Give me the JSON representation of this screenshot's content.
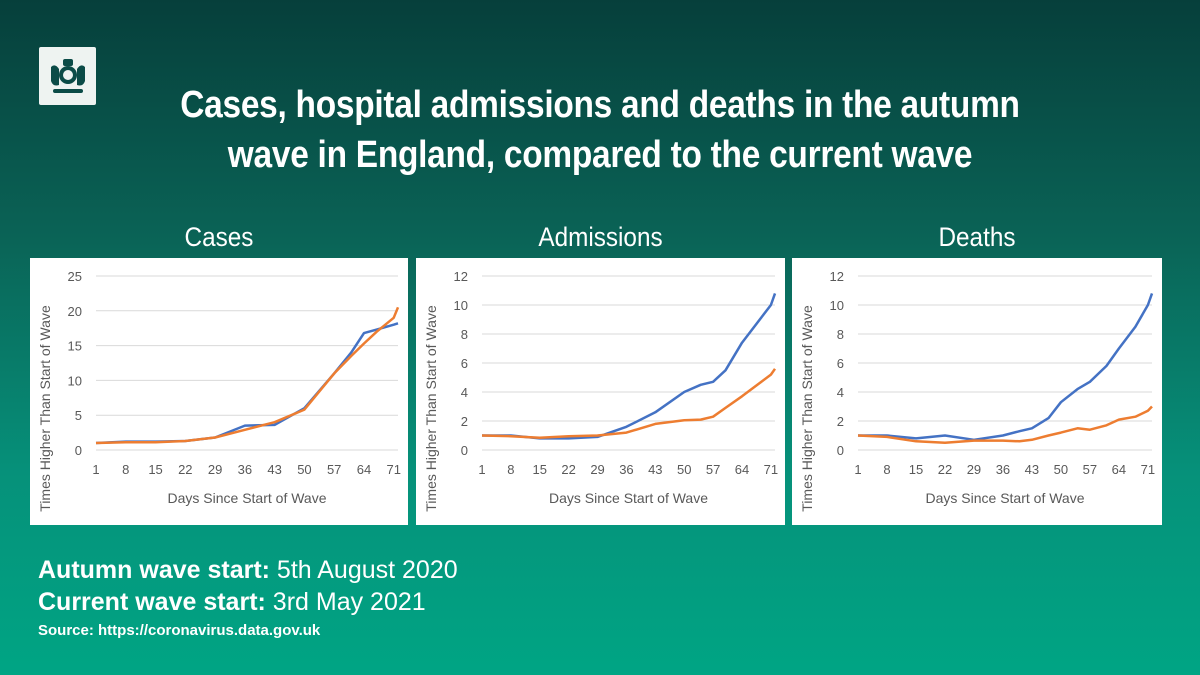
{
  "header": {
    "title_line1": "Cases, hospital admissions and deaths in the autumn",
    "title_line2": "wave in England, compared to the current wave"
  },
  "colors": {
    "blue": "#4472c4",
    "orange": "#ed7d31",
    "grid": "#d9d9d9",
    "axis_text": "#595959"
  },
  "chart_data": [
    {
      "type": "line",
      "title": "Cases",
      "xlabel": "Days Since Start of Wave",
      "ylabel": "Times Higher Than Start of Wave",
      "ylim": [
        0,
        25
      ],
      "yticks": [
        0,
        5,
        10,
        15,
        20,
        25
      ],
      "xticks": [
        1,
        8,
        15,
        22,
        29,
        36,
        43,
        50,
        57,
        64,
        71
      ],
      "xlim": [
        1,
        72
      ],
      "grid": true,
      "x": [
        1,
        8,
        15,
        22,
        29,
        36,
        43,
        50,
        57,
        61,
        64,
        67,
        71,
        72
      ],
      "series": [
        {
          "color": "blue",
          "values": [
            1,
            1.2,
            1.2,
            1.3,
            1.8,
            3.5,
            3.6,
            6,
            11,
            14,
            16.8,
            17.3,
            18,
            18.2
          ]
        },
        {
          "color": "orange",
          "values": [
            1,
            1.1,
            1.1,
            1.3,
            1.8,
            2.9,
            4,
            5.8,
            11,
            13.5,
            15.3,
            17,
            19,
            20.5
          ]
        }
      ]
    },
    {
      "type": "line",
      "title": "Admissions",
      "xlabel": "Days Since Start of Wave",
      "ylabel": "Times Higher Than Start of Wave",
      "ylim": [
        0,
        12
      ],
      "yticks": [
        0,
        2,
        4,
        6,
        8,
        10,
        12
      ],
      "xticks": [
        1,
        8,
        15,
        22,
        29,
        36,
        43,
        50,
        57,
        64,
        71
      ],
      "xlim": [
        1,
        72
      ],
      "grid": true,
      "x": [
        1,
        8,
        15,
        22,
        29,
        36,
        43,
        50,
        54,
        57,
        60,
        64,
        71,
        72
      ],
      "series": [
        {
          "color": "blue",
          "values": [
            1,
            1,
            0.8,
            0.8,
            0.9,
            1.6,
            2.6,
            4,
            4.5,
            4.7,
            5.5,
            7.4,
            10,
            10.8
          ]
        },
        {
          "color": "orange",
          "values": [
            1,
            0.95,
            0.85,
            0.95,
            1,
            1.2,
            1.8,
            2.05,
            2.1,
            2.3,
            2.9,
            3.7,
            5.2,
            5.6
          ]
        }
      ]
    },
    {
      "type": "line",
      "title": "Deaths",
      "xlabel": "Days Since Start of Wave",
      "ylabel": "Times Higher Than Start of Wave",
      "ylim": [
        0,
        12
      ],
      "yticks": [
        0,
        2,
        4,
        6,
        8,
        10,
        12
      ],
      "xticks": [
        1,
        8,
        15,
        22,
        29,
        36,
        43,
        50,
        57,
        64,
        71
      ],
      "xlim": [
        1,
        72
      ],
      "grid": true,
      "x": [
        1,
        8,
        15,
        22,
        29,
        36,
        40,
        43,
        47,
        50,
        54,
        57,
        61,
        64,
        68,
        71,
        72
      ],
      "series": [
        {
          "color": "blue",
          "values": [
            1,
            1,
            0.8,
            1,
            0.7,
            1,
            1.3,
            1.5,
            2.2,
            3.3,
            4.2,
            4.7,
            5.8,
            7,
            8.5,
            10,
            10.8
          ]
        },
        {
          "color": "orange",
          "values": [
            1,
            0.9,
            0.6,
            0.5,
            0.65,
            0.65,
            0.6,
            0.7,
            1,
            1.2,
            1.5,
            1.4,
            1.7,
            2.1,
            2.3,
            2.7,
            3.0
          ]
        }
      ]
    }
  ],
  "footer": {
    "autumn_label": "Autumn wave start:",
    "autumn_value": " 5th August 2020",
    "current_label": "Current wave start:",
    "current_value": " 3rd May 2021",
    "source": "Source: https://coronavirus.data.gov.uk"
  }
}
